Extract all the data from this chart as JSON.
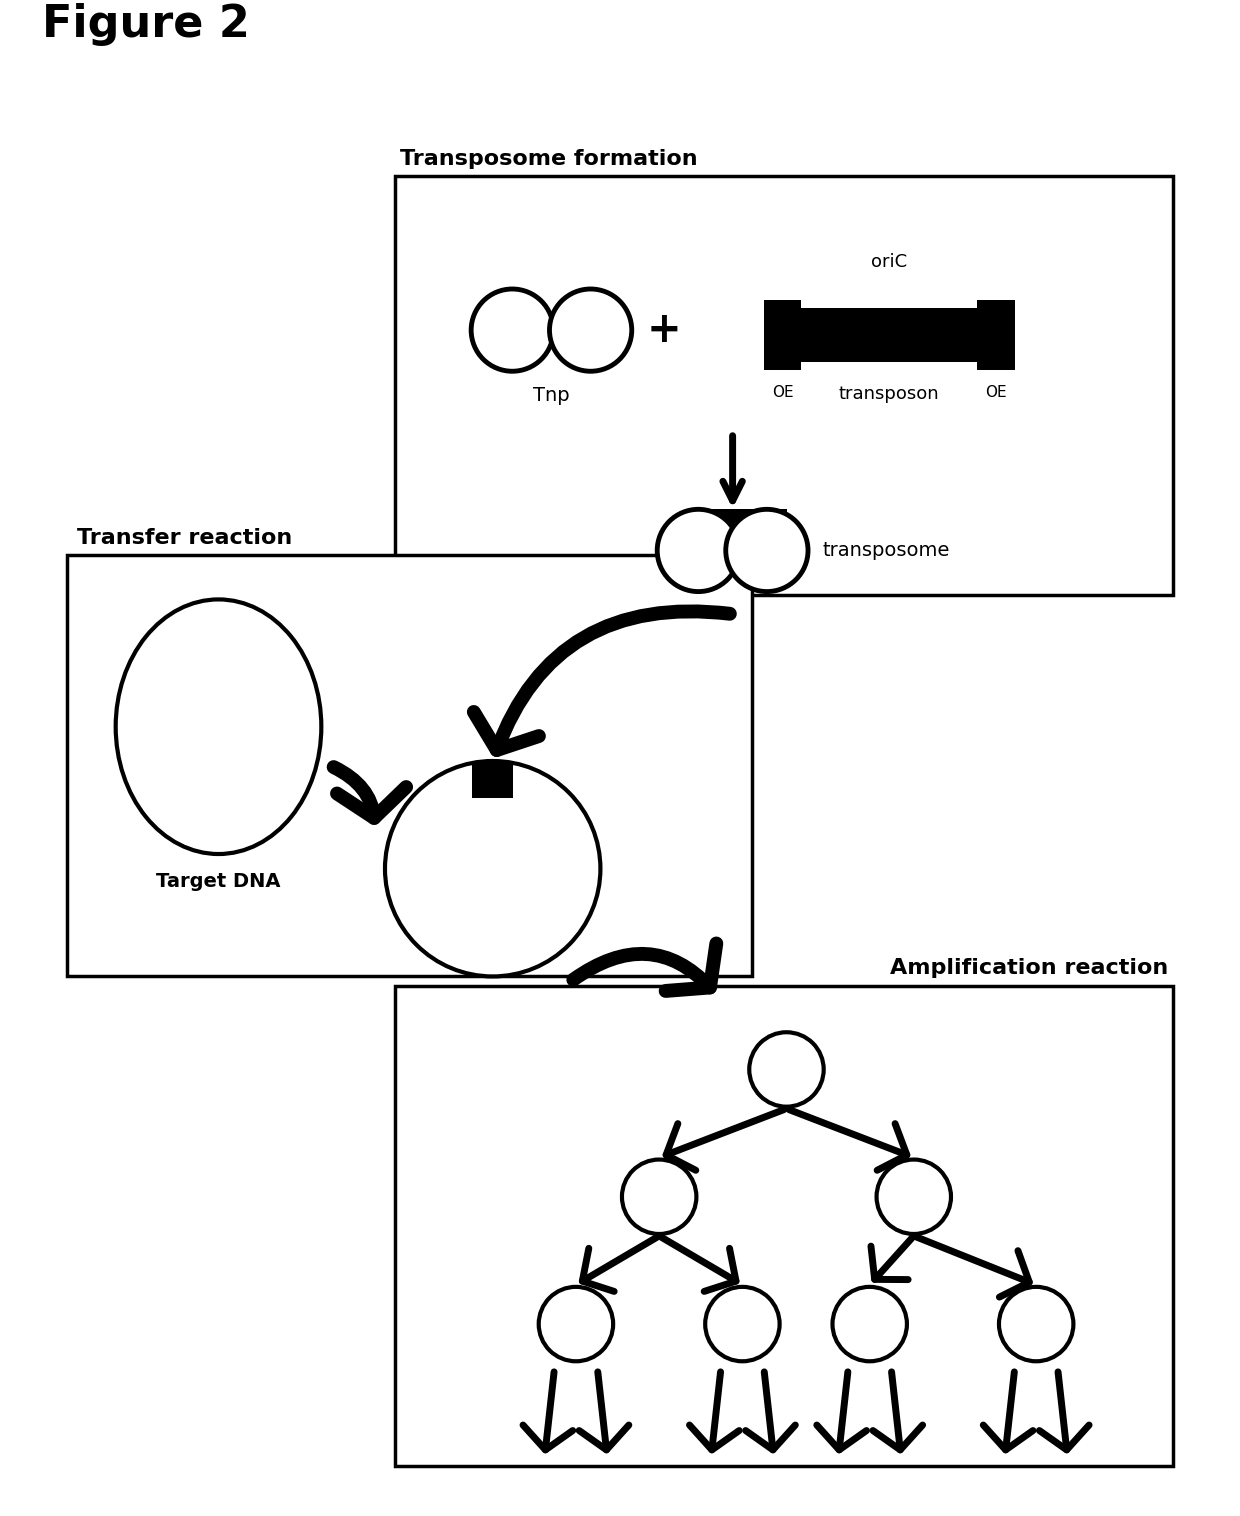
{
  "title": "Figure 2",
  "background_color": "#ffffff",
  "text_color": "#000000",
  "transposome_formation_label": "Transposome formation",
  "transfer_reaction_label": "Transfer reaction",
  "amplification_reaction_label": "Amplification reaction",
  "tnp_label": "Tnp",
  "transposon_label": "transposon",
  "transposome_label": "transposome",
  "target_dna_label": "Target DNA",
  "oriC_label": "oriC",
  "OE_label": "OE",
  "plus_sign": "+",
  "fig_width": 12.4,
  "fig_height": 15.16,
  "dpi": 100
}
